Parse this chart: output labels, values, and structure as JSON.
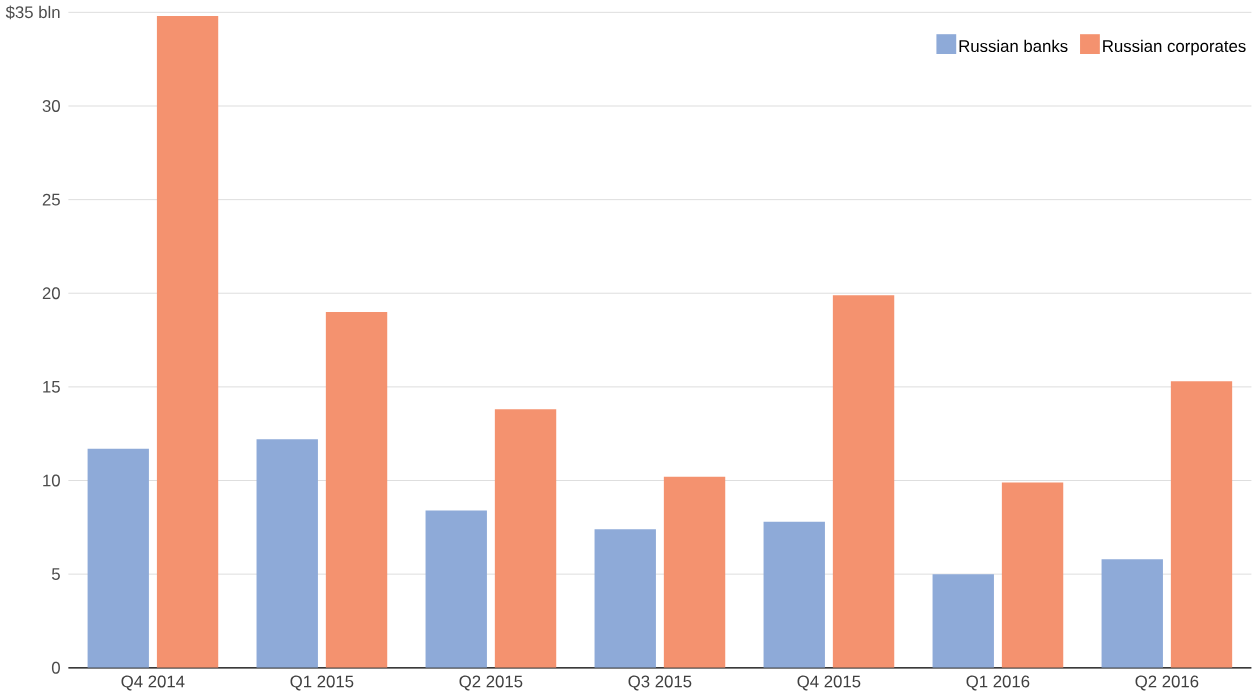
{
  "chart_data": {
    "type": "bar",
    "categories": [
      "Q4 2014",
      "Q1 2015",
      "Q2 2015",
      "Q3 2015",
      "Q4 2015",
      "Q1 2016",
      "Q2 2016"
    ],
    "series": [
      {
        "name": "Russian banks",
        "color": "#8eaad8",
        "values": [
          11.7,
          12.2,
          8.4,
          7.4,
          7.8,
          5.0,
          5.8
        ]
      },
      {
        "name": "Russian corporates",
        "color": "#f4926f",
        "values": [
          34.8,
          19.0,
          13.8,
          10.2,
          19.9,
          9.9,
          15.3
        ]
      }
    ],
    "ylim": [
      0,
      35
    ],
    "yticks": [
      0,
      5,
      10,
      15,
      20,
      25,
      30,
      {
        "value": 35,
        "label": "$35 bln"
      }
    ],
    "grid": "y",
    "legend": "top right"
  }
}
